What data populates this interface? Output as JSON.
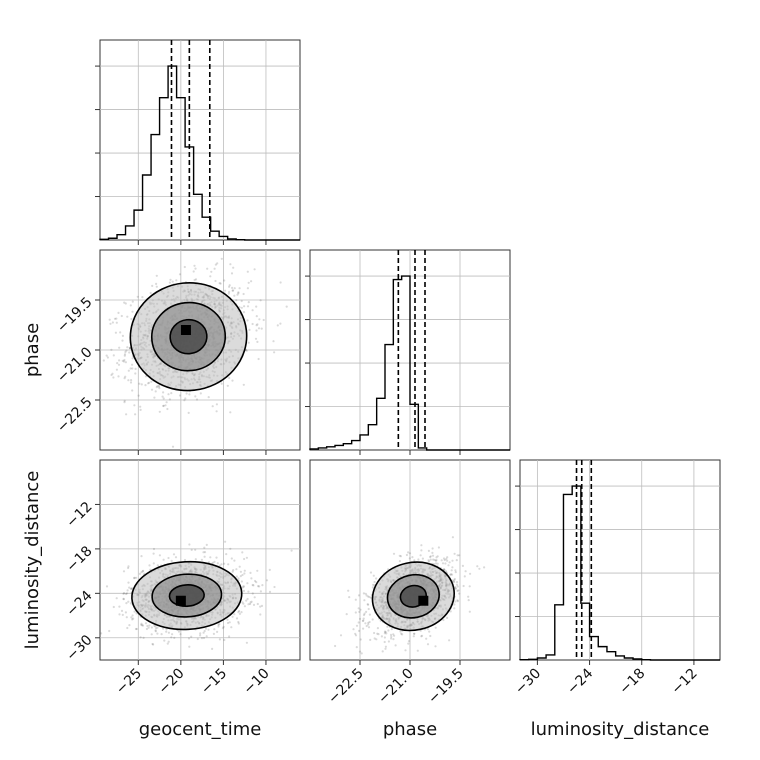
{
  "chart_data": {
    "type": "corner",
    "parameters": [
      "geocent_time",
      "phase",
      "luminosity_distance"
    ],
    "axis_labels": {
      "geocent_time": "geocent_time",
      "phase": "phase",
      "luminosity_distance": "luminosity_distance"
    },
    "grid": true,
    "histograms": {
      "geocent_time": {
        "range": [
          -29.5,
          -6.0
        ],
        "bin_width": 1.0,
        "ticks": [
          -25,
          -20,
          -15,
          -10
        ],
        "tick_labels": [
          "−25",
          "−20",
          "−15",
          "−10"
        ],
        "counts": [
          0.2,
          0.5,
          1.5,
          4.0,
          8.5,
          18.5,
          30.0,
          40.5,
          49.5,
          40.5,
          26.5,
          13.0,
          6.5,
          2.5,
          1.0,
          0.3,
          0.1,
          0,
          0,
          0,
          0,
          0,
          0,
          0
        ],
        "quantiles": [
          -21.1,
          -19.0,
          -16.6
        ]
      },
      "phase": {
        "range": [
          -24.0,
          -18.0
        ],
        "bin_width": 0.25,
        "ticks": [
          -22.5,
          -21.0,
          -19.5
        ],
        "tick_labels": [
          "−22.5",
          "−21.0",
          "−19.5"
        ],
        "counts": [
          0.3,
          0.6,
          0.9,
          1.3,
          1.8,
          2.7,
          4.3,
          7.2,
          14.7,
          30.0,
          48.5,
          49.5,
          13.0,
          0.6,
          0,
          0,
          0,
          0,
          0,
          0,
          0,
          0,
          0,
          0
        ],
        "quantiles": [
          -21.35,
          -20.85,
          -20.55
        ]
      },
      "luminosity_distance": {
        "range": [
          -32.0,
          -9.0
        ],
        "bin_width": 1.0,
        "ticks": [
          -30,
          -24,
          -18,
          -12
        ],
        "tick_labels": [
          "−30",
          "−24",
          "−18",
          "−12"
        ],
        "counts": [
          0.1,
          0.2,
          0.6,
          1.5,
          16.5,
          49.5,
          52.0,
          17.0,
          7.0,
          4.0,
          2.5,
          1.2,
          0.6,
          0.3,
          0.1,
          0,
          0,
          0,
          0,
          0,
          0,
          0,
          0
        ],
        "quantiles": [
          -25.5,
          -24.9,
          -23.8
        ]
      }
    },
    "joint": [
      {
        "x": "geocent_time",
        "y": "phase",
        "mean": [
          -19.1,
          -20.6
        ],
        "sigma": [
          3.6,
          0.85
        ],
        "correlation": 0.2,
        "peak": [
          -19.4,
          -20.4
        ],
        "xlim": [
          -29.5,
          -6.0
        ],
        "ylim": [
          -24.0,
          -18.0
        ],
        "yticks": [
          -19.5,
          -21.0,
          -22.5
        ],
        "ytick_labels": [
          "−19.5",
          "−21.0",
          "−22.5"
        ]
      },
      {
        "x": "geocent_time",
        "y": "luminosity_distance",
        "mean": [
          -19.3,
          -24.3
        ],
        "sigma": [
          3.4,
          2.4
        ],
        "correlation": 0.1,
        "peak": [
          -20.0,
          -25.0
        ],
        "xlim": [
          -29.5,
          -6.0
        ],
        "ylim": [
          -33.0,
          -6.0
        ],
        "yticks": [
          -12,
          -18,
          -24,
          -30
        ],
        "ytick_labels": [
          "−12",
          "−18",
          "−24",
          "−30"
        ]
      },
      {
        "x": "phase",
        "y": "luminosity_distance",
        "mean": [
          -20.9,
          -24.4
        ],
        "sigma": [
          0.65,
          2.4
        ],
        "correlation": 0.4,
        "peak": [
          -20.6,
          -25.0
        ],
        "xlim": [
          -24.0,
          -18.0
        ],
        "ylim": [
          -33.0,
          -6.0
        ]
      }
    ]
  },
  "colors": {
    "hist_line": "#000000",
    "scatter": "#555555",
    "grid": "#bdbdbd",
    "axes": "#333333"
  }
}
